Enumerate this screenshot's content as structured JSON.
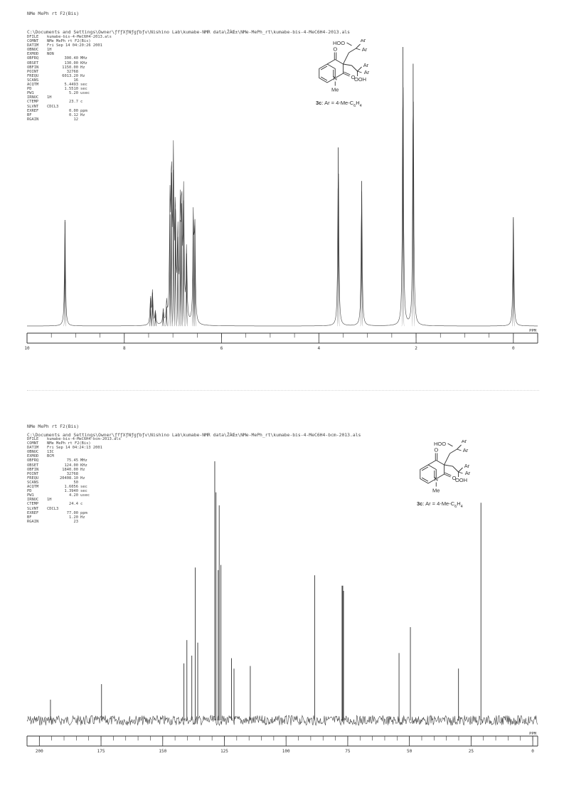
{
  "spectra": [
    {
      "id": "h1",
      "page_title": "NMe MePh rt F2(Bis)",
      "path": "C:\\Documents and Settings\\Owner\\ƒfƒXƒNƒgƒbƒv\\Nishino Lab\\kumabe-NMR data\\ŽÀŒ±\\NMe-MePh_rt\\kumabe-bis-4-MeC6H4-2013.als",
      "params": [
        {
          "k": "DFILE",
          "v": "kumabe-bis-4-MeC6H4-2013.als",
          "u": ""
        },
        {
          "k": "COMNT",
          "v": "NMe MePh rt F2(Bis)",
          "u": ""
        },
        {
          "k": "DATIM",
          "v": "Fri Sep 14 04:20:26 2001",
          "u": ""
        },
        {
          "k": "OBNUC",
          "v": "1H",
          "u": ""
        },
        {
          "k": "EXMOD",
          "v": "NON",
          "u": ""
        },
        {
          "k": "OBFRQ",
          "v": "300.40",
          "u": "MHz"
        },
        {
          "k": "OBSET",
          "v": "130.00",
          "u": "KHz"
        },
        {
          "k": "OBFIN",
          "v": "1150.00",
          "u": "Hz"
        },
        {
          "k": "POINT",
          "v": "32768",
          "u": ""
        },
        {
          "k": "FREQU",
          "v": "6013.20",
          "u": "Hz"
        },
        {
          "k": "SCANS",
          "v": "16",
          "u": ""
        },
        {
          "k": "ACQTM",
          "v": "5.4493",
          "u": "sec"
        },
        {
          "k": "PD",
          "v": "1.5510",
          "u": "sec"
        },
        {
          "k": "PW1",
          "v": "5.20",
          "u": "usec"
        },
        {
          "k": "IRNUC",
          "v": "1H",
          "u": ""
        },
        {
          "k": "CTEMP",
          "v": "23.7",
          "u": "c"
        },
        {
          "k": "SLVNT",
          "v": "CDCL3",
          "u": ""
        },
        {
          "k": "EXREF",
          "v": "0.00",
          "u": "ppm"
        },
        {
          "k": "BF",
          "v": "0.12",
          "u": "Hz"
        },
        {
          "k": "RGAIN",
          "v": "12",
          "u": ""
        }
      ],
      "structure": {
        "labels": {
          "hoo": "HOO",
          "ar1": "Ar",
          "ar2": "Ar",
          "ar3": "Ar",
          "ar4": "Ar",
          "ooh": "OOH",
          "o1": "O",
          "o2": "O",
          "n": "N",
          "me": "Me"
        },
        "caption": {
          "cmp": "3c",
          "rest": ": Ar = 4-Me-C",
          "sub1": "6",
          "mid": "H",
          "sub2": "4"
        }
      },
      "chart_data": {
        "type": "line",
        "title": "",
        "xlabel": "",
        "ylabel": "",
        "xlim": [
          10,
          -0.5
        ],
        "x_unit": "PPM",
        "ticks": [
          10,
          8,
          6,
          4,
          2,
          0
        ],
        "peaks": [
          {
            "ppm": 9.22,
            "h": 0.38
          },
          {
            "ppm": 7.46,
            "h": 0.1
          },
          {
            "ppm": 7.42,
            "h": 0.12
          },
          {
            "ppm": 7.36,
            "h": 0.05
          },
          {
            "ppm": 7.2,
            "h": 0.05
          },
          {
            "ppm": 7.13,
            "h": 0.07
          },
          {
            "ppm": 7.06,
            "h": 0.4
          },
          {
            "ppm": 7.03,
            "h": 0.55
          },
          {
            "ppm": 6.99,
            "h": 0.56
          },
          {
            "ppm": 6.95,
            "h": 0.42
          },
          {
            "ppm": 6.9,
            "h": 0.32
          },
          {
            "ppm": 6.85,
            "h": 0.38
          },
          {
            "ppm": 6.82,
            "h": 0.44
          },
          {
            "ppm": 6.78,
            "h": 0.45
          },
          {
            "ppm": 6.72,
            "h": 0.26
          },
          {
            "ppm": 6.58,
            "h": 0.38
          },
          {
            "ppm": 6.55,
            "h": 0.36
          },
          {
            "ppm": 3.6,
            "h": 0.64
          },
          {
            "ppm": 3.12,
            "h": 0.52
          },
          {
            "ppm": 2.27,
            "h": 1.0
          },
          {
            "ppm": 2.06,
            "h": 0.94
          },
          {
            "ppm": 0.0,
            "h": 0.39
          }
        ]
      }
    },
    {
      "id": "c13",
      "page_title": "NMe MePh rt F2(Bis)",
      "path": "C:\\Documents and Settings\\Owner\\ƒfƒXƒNƒgƒbƒv\\Nishino Lab\\kumabe-NMR data\\ŽÀŒ±\\NMe-MePh_rt\\kumabe-bis-4-MeC6H4-bcm-2013.als",
      "params": [
        {
          "k": "DFILE",
          "v": "kumabe-bis-4-MeC6H4-bcm-2013.als",
          "u": ""
        },
        {
          "k": "COMNT",
          "v": "NMe MePh rt F2(Bis)",
          "u": ""
        },
        {
          "k": "DATIM",
          "v": "Fri Sep 14 04:24:13 2001",
          "u": ""
        },
        {
          "k": "OBNUC",
          "v": "13C",
          "u": ""
        },
        {
          "k": "EXMOD",
          "v": "BCM",
          "u": ""
        },
        {
          "k": "OBFRQ",
          "v": "75.45",
          "u": "MHz"
        },
        {
          "k": "OBSET",
          "v": "124.00",
          "u": "KHz"
        },
        {
          "k": "OBFIN",
          "v": "1840.00",
          "u": "Hz"
        },
        {
          "k": "POINT",
          "v": "32768",
          "u": ""
        },
        {
          "k": "FREQU",
          "v": "20408.10",
          "u": "Hz"
        },
        {
          "k": "SCANS",
          "v": "50",
          "u": ""
        },
        {
          "k": "ACQTM",
          "v": "1.6056",
          "u": "sec"
        },
        {
          "k": "PD",
          "v": "1.3940",
          "u": "sec"
        },
        {
          "k": "PW1",
          "v": "4.20",
          "u": "usec"
        },
        {
          "k": "IRNUC",
          "v": "1H",
          "u": ""
        },
        {
          "k": "CTEMP",
          "v": "24.4",
          "u": "c"
        },
        {
          "k": "SLVNT",
          "v": "CDCL3",
          "u": ""
        },
        {
          "k": "EXREF",
          "v": "77.00",
          "u": "ppm"
        },
        {
          "k": "BF",
          "v": "1.20",
          "u": "Hz"
        },
        {
          "k": "RGAIN",
          "v": "23",
          "u": ""
        }
      ],
      "structure": {
        "labels": {
          "hoo": "HOO",
          "ar1": "Ar",
          "ar2": "Ar",
          "ar3": "Ar",
          "ar4": "Ar",
          "ooh": "OOH",
          "o1": "O",
          "o2": "O",
          "n": "N",
          "me": "Me"
        },
        "caption": {
          "cmp": "3c",
          "rest": ": Ar = 4-Me-C",
          "sub1": "6",
          "mid": "H",
          "sub2": "4"
        }
      },
      "chart_data": {
        "type": "line",
        "title": "",
        "xlabel": "",
        "ylabel": "",
        "xlim": [
          205,
          -2
        ],
        "x_unit": "PPM",
        "ticks": [
          200,
          175,
          150,
          125,
          100,
          75,
          50,
          25,
          0
        ],
        "peaks": [
          {
            "ppm": 195.5,
            "h": 0.08
          },
          {
            "ppm": 174.8,
            "h": 0.14
          },
          {
            "ppm": 141.4,
            "h": 0.22
          },
          {
            "ppm": 140.2,
            "h": 0.31
          },
          {
            "ppm": 138.2,
            "h": 0.25
          },
          {
            "ppm": 136.8,
            "h": 0.59
          },
          {
            "ppm": 135.8,
            "h": 0.3
          },
          {
            "ppm": 128.9,
            "h": 1.0
          },
          {
            "ppm": 128.4,
            "h": 0.88
          },
          {
            "ppm": 127.5,
            "h": 0.58
          },
          {
            "ppm": 127.1,
            "h": 0.83
          },
          {
            "ppm": 126.4,
            "h": 0.6
          },
          {
            "ppm": 122.1,
            "h": 0.24
          },
          {
            "ppm": 121.1,
            "h": 0.2
          },
          {
            "ppm": 114.5,
            "h": 0.21
          },
          {
            "ppm": 88.4,
            "h": 0.56
          },
          {
            "ppm": 77.3,
            "h": 0.52
          },
          {
            "ppm": 77.0,
            "h": 0.52
          },
          {
            "ppm": 76.7,
            "h": 0.5
          },
          {
            "ppm": 54.2,
            "h": 0.26
          },
          {
            "ppm": 49.6,
            "h": 0.36
          },
          {
            "ppm": 30.1,
            "h": 0.2
          },
          {
            "ppm": 21.0,
            "h": 0.84
          }
        ]
      }
    }
  ]
}
